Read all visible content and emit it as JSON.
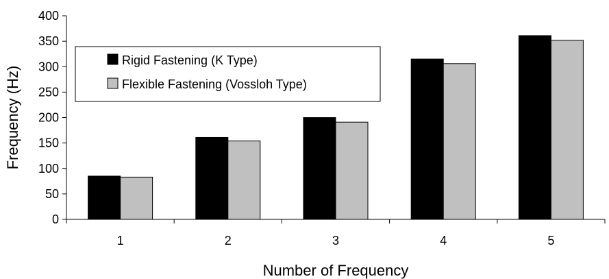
{
  "chart_data": {
    "type": "bar",
    "title": "",
    "xlabel": "Number of Frequency",
    "ylabel": "Frequency (Hz)",
    "categories": [
      "1",
      "2",
      "3",
      "4",
      "5"
    ],
    "series": [
      {
        "name": "Rigid Fastening (K Type)",
        "color": "#000000",
        "values": [
          85,
          161,
          200,
          315,
          361
        ]
      },
      {
        "name": "Flexible Fastening (Vossloh Type)",
        "color": "#c0c0c0",
        "values": [
          83,
          154,
          191,
          306,
          352
        ]
      }
    ],
    "ylim": [
      0,
      400
    ],
    "yticks": [
      "0",
      "50",
      "100",
      "150",
      "200",
      "250",
      "300",
      "350",
      "400"
    ],
    "grid": false,
    "legend_position": "top-left"
  }
}
